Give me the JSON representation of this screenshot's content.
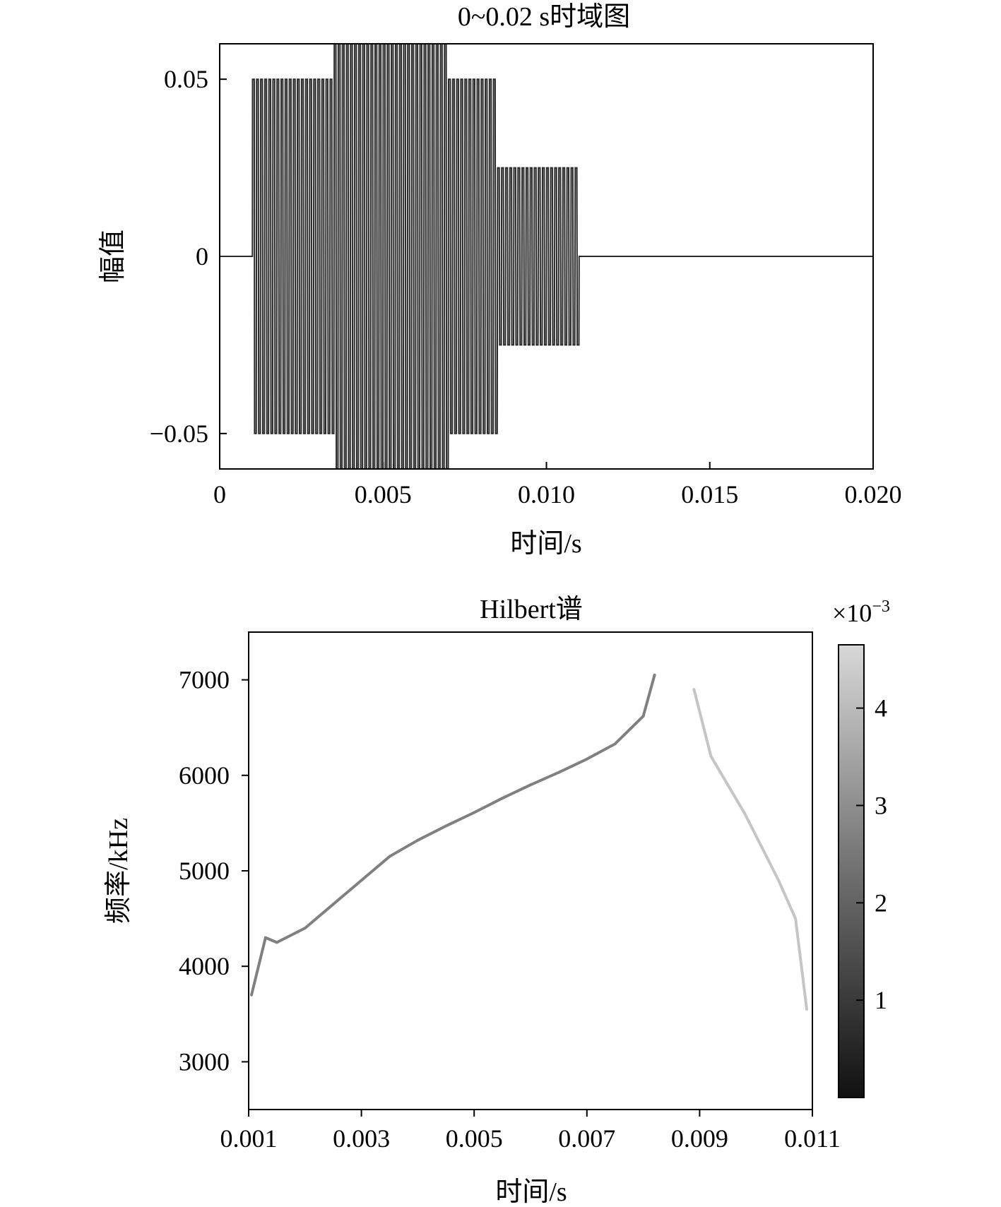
{
  "chart_data": [
    {
      "type": "line",
      "title": "0~0.02 s时域图",
      "xlabel": "时间/s",
      "ylabel": "幅值",
      "xlim": [
        0,
        0.02
      ],
      "ylim": [
        -0.06,
        0.06
      ],
      "x_ticks": [
        0,
        0.005,
        0.01,
        0.015,
        0.02
      ],
      "x_tick_labels": [
        "0",
        "0.005",
        "0.010",
        "0.015",
        "0.020"
      ],
      "y_ticks": [
        -0.05,
        0,
        0.05
      ],
      "y_tick_labels": [
        "−0.05",
        "0",
        "0.05"
      ],
      "grid": false,
      "series": [
        {
          "segments": [
            {
              "t_start": 0.0,
              "t_end": 0.001,
              "amplitude": 0
            },
            {
              "t_start": 0.001,
              "t_end": 0.0035,
              "amplitude": 0.05
            },
            {
              "t_start": 0.0035,
              "t_end": 0.007,
              "amplitude": 0.06
            },
            {
              "t_start": 0.007,
              "t_end": 0.0085,
              "amplitude": 0.05
            },
            {
              "t_start": 0.0085,
              "t_end": 0.011,
              "amplitude": 0.025
            },
            {
              "t_start": 0.011,
              "t_end": 0.02,
              "amplitude": 0
            }
          ]
        }
      ]
    },
    {
      "type": "line",
      "title": "Hilbert谱",
      "xlabel": "时间/s",
      "ylabel": "频率/kHz",
      "xlim": [
        0.001,
        0.011
      ],
      "ylim": [
        2500,
        7500
      ],
      "x_ticks": [
        0.001,
        0.003,
        0.005,
        0.007,
        0.009,
        0.011
      ],
      "x_tick_labels": [
        "0.001",
        "0.003",
        "0.005",
        "0.007",
        "0.009",
        "0.011"
      ],
      "y_ticks": [
        3000,
        4000,
        5000,
        6000,
        7000
      ],
      "y_tick_labels": [
        "3000",
        "4000",
        "5000",
        "6000",
        "7000"
      ],
      "grid": false,
      "colorbar": {
        "multiplier_label": "×10",
        "multiplier_exponent": "−3",
        "ticks": [
          1,
          2,
          3,
          4
        ],
        "tick_labels": [
          "1",
          "2",
          "3",
          "4"
        ],
        "range": [
          0,
          4.65
        ],
        "colormap": "gray"
      },
      "series": [
        {
          "x": [
            0.00105,
            0.0013,
            0.0015,
            0.002,
            0.0025,
            0.003,
            0.0035,
            0.004,
            0.0045,
            0.005,
            0.0055,
            0.006,
            0.0065,
            0.007,
            0.0075,
            0.008,
            0.0082
          ],
          "y": [
            3700,
            4300,
            4250,
            4400,
            4650,
            4900,
            5150,
            5320,
            5470,
            5610,
            5760,
            5900,
            6030,
            6170,
            6330,
            6620,
            7050
          ],
          "color_value": 2.6
        },
        {
          "x": [
            0.0089,
            0.0092,
            0.0095,
            0.0098,
            0.0101,
            0.0104,
            0.0107,
            0.0109
          ],
          "y": [
            6900,
            6200,
            5900,
            5600,
            5250,
            4900,
            4500,
            3550
          ],
          "color_value": 4.2
        }
      ]
    }
  ]
}
